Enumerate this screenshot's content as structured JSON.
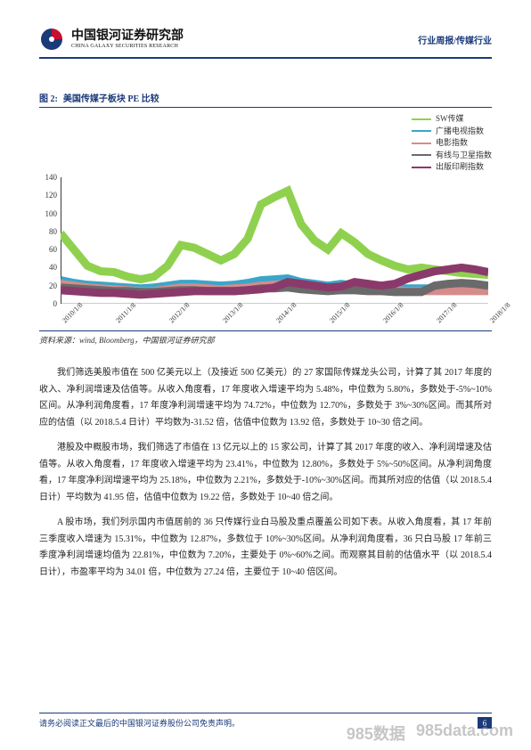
{
  "header": {
    "logo_cn": "中国银河证券研究部",
    "logo_en": "CHINA GALAXY SECURITIES RESEARCH",
    "right_text": "行业周报/传媒行业",
    "logo_red": "#c8102e",
    "logo_blue": "#1a3a7a",
    "rule_color": "#1a3a7a"
  },
  "figure": {
    "label": "图 2:",
    "title": "美国传媒子板块 PE 比较",
    "source": "资料来源：wind, Bloomberg，中国银河证券研究部",
    "chart": {
      "type": "line",
      "background_color": "#ffffff",
      "grid_color": "#e0e0e0",
      "axis_color": "#333333",
      "ylim": [
        0,
        140
      ],
      "ytick_step": 20,
      "yticks": [
        0,
        20,
        40,
        60,
        80,
        100,
        120,
        140
      ],
      "x_labels": [
        "2010/1/8",
        "2011/1/8",
        "2012/1/8",
        "2013/1/8",
        "2014/1/8",
        "2015/1/8",
        "2016/1/8",
        "2017/1/8",
        "2018/1/8"
      ],
      "label_fontsize": 9,
      "tick_fontsize": 8,
      "x_tick_rotation_deg": -45,
      "line_width": 1.3,
      "series": [
        {
          "name": "SW传媒",
          "color": "#8fd14f",
          "values": [
            78,
            60,
            42,
            36,
            35,
            30,
            27,
            30,
            42,
            65,
            62,
            55,
            48,
            55,
            72,
            110,
            118,
            125,
            88,
            70,
            60,
            78,
            68,
            55,
            48,
            42,
            38,
            40,
            38,
            36,
            34,
            33,
            32
          ]
        },
        {
          "name": "广播电视指数",
          "color": "#3aa6c9",
          "values": [
            26,
            23,
            21,
            20,
            19,
            18,
            17,
            18,
            20,
            22,
            22,
            21,
            20,
            21,
            23,
            26,
            27,
            28,
            24,
            22,
            20,
            22,
            20,
            19,
            18,
            17,
            17,
            17,
            17,
            17,
            17,
            17,
            17
          ]
        },
        {
          "name": "电影指数",
          "color": "#d68b8b",
          "values": [
            22,
            20,
            18,
            17,
            16,
            15,
            14,
            14,
            16,
            18,
            18,
            17,
            16,
            17,
            18,
            20,
            21,
            22,
            19,
            18,
            16,
            18,
            17,
            16,
            15,
            15,
            14,
            14,
            14,
            14,
            14,
            14,
            14
          ]
        },
        {
          "name": "有线与卫星指数",
          "color": "#6a6a6a",
          "values": [
            18,
            17,
            16,
            15,
            14,
            14,
            13,
            13,
            14,
            15,
            15,
            14,
            14,
            14,
            15,
            17,
            17,
            18,
            16,
            15,
            14,
            15,
            15,
            14,
            14,
            13,
            13,
            13,
            20,
            22,
            23,
            22,
            20
          ]
        },
        {
          "name": "出版印刷指数",
          "color": "#8a3a6a",
          "values": [
            15,
            14,
            13,
            12,
            12,
            11,
            10,
            11,
            12,
            13,
            14,
            14,
            14,
            14,
            15,
            16,
            18,
            24,
            22,
            20,
            18,
            19,
            24,
            22,
            20,
            22,
            28,
            32,
            36,
            38,
            40,
            38,
            35
          ]
        }
      ]
    }
  },
  "paragraphs": {
    "p1": "我们筛选美股市值在 500 亿美元以上（及接近 500 亿美元）的 27 家国际传媒龙头公司，计算了其 2017 年度的收入、净利润增速及估值等。从收入角度看，17 年度收入增速平均为 5.48%，中位数为 5.80%，多数处于-5%~10%区间。从净利润角度看，17 年度净利润增速平均为 74.72%，中位数为 12.70%，多数处于 3%~30%区间。而其所对应的估值（以 2018.5.4 日计）平均数为-31.52 倍，估值中位数为 13.92 倍，多数处于 10~30 倍之间。",
    "p2": "港股及中概股市场，我们筛选了市值在 13 亿元以上的 15 家公司，计算了其 2017 年度的收入、净利润增速及估值等。从收入角度看，17 年度收入增速平均为 23.41%，中位数为 12.80%，多数处于 5%~50%区间。从净利润角度看，17 年度净利润增速平均为 25.18%，中位数为 2.21%，多数处于-10%~30%区间。而其所对应的估值（以 2018.5.4 日计）平均数为 41.95 倍，估值中位数为 19.22 倍，多数处于 10~40 倍之间。",
    "p3": "A 股市场，我们列示国内市值居前的 36 只传媒行业白马股及重点覆盖公司如下表。从收入角度看，其 17 年前三季度收入增速为 15.31%，中位数为 12.87%，多数位于 10%~30%区间。从净利润角度看，36 只白马股 17 年前三季度净利润增速均值为 22.81%，中位数为 7.20%，主要处于 0%~60%之间。而观察其目前的估值水平（以 2018.5.4 日计），市盈率平均为 34.01 倍，中位数为 27.24 倍，主要位于 10~40 倍区间。"
  },
  "footer": {
    "disclaimer": "请务必阅读正文最后的中国银河证券股份公司免责声明。",
    "page_number": "6"
  },
  "watermark": {
    "left": "985数据",
    "right": "985data.com",
    "color": "#999999"
  }
}
